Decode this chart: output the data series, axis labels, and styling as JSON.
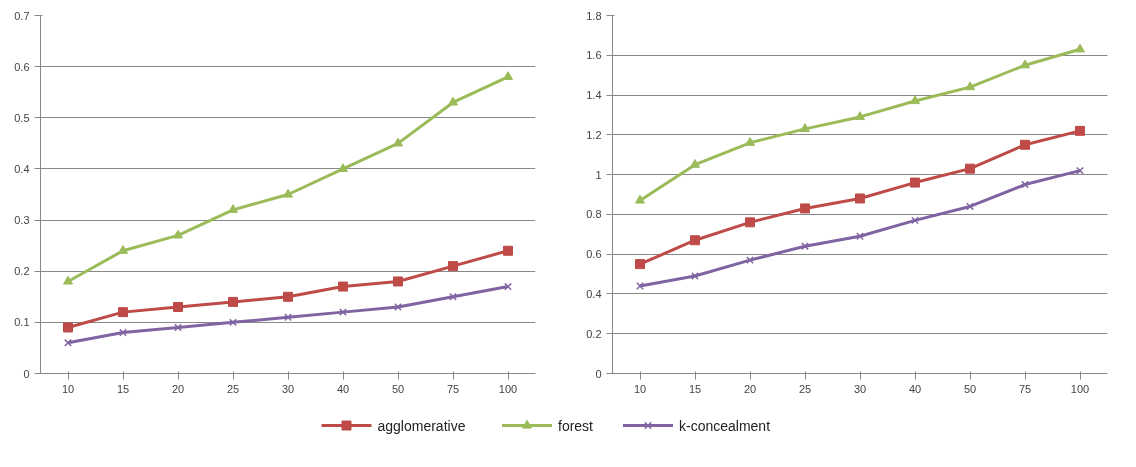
{
  "chart_data": [
    {
      "type": "line",
      "categories": [
        "10",
        "15",
        "20",
        "25",
        "30",
        "40",
        "50",
        "75",
        "100"
      ],
      "ylim": [
        0,
        0.7
      ],
      "yticks": [
        0,
        0.1,
        0.2,
        0.3,
        0.4,
        0.5,
        0.6,
        0.7
      ],
      "grid": "y",
      "legend": "bottom",
      "series": [
        {
          "name": "agglomerative",
          "color": "#be4b48",
          "marker": "square",
          "values": [
            0.09,
            0.12,
            0.13,
            0.14,
            0.15,
            0.17,
            0.18,
            0.21,
            0.24
          ]
        },
        {
          "name": "forest",
          "color": "#9bbb59",
          "marker": "triangle",
          "values": [
            0.18,
            0.24,
            0.27,
            0.32,
            0.35,
            0.4,
            0.45,
            0.53,
            0.58
          ]
        },
        {
          "name": "k-concealment",
          "color": "#8064a2",
          "marker": "cross",
          "values": [
            0.06,
            0.08,
            0.09,
            0.1,
            0.11,
            0.12,
            0.13,
            0.15,
            0.17
          ]
        }
      ]
    },
    {
      "type": "line",
      "categories": [
        "10",
        "15",
        "20",
        "25",
        "30",
        "40",
        "50",
        "75",
        "100"
      ],
      "ylim": [
        0,
        1.8
      ],
      "yticks": [
        0,
        0.2,
        0.4,
        0.6,
        0.8,
        1,
        1.2,
        1.4,
        1.6,
        1.8
      ],
      "grid": "y",
      "series": [
        {
          "color": "#be4b48",
          "marker": "square",
          "values": [
            0.55,
            0.67,
            0.76,
            0.83,
            0.88,
            0.96,
            1.03,
            1.15,
            1.22
          ]
        },
        {
          "color": "#9bbb59",
          "marker": "triangle",
          "values": [
            0.87,
            1.05,
            1.16,
            1.23,
            1.29,
            1.37,
            1.44,
            1.55,
            1.63
          ]
        },
        {
          "color": "#8064a2",
          "marker": "cross",
          "values": [
            0.44,
            0.49,
            0.57,
            0.64,
            0.69,
            0.77,
            0.84,
            0.95,
            1.02
          ]
        }
      ]
    }
  ]
}
